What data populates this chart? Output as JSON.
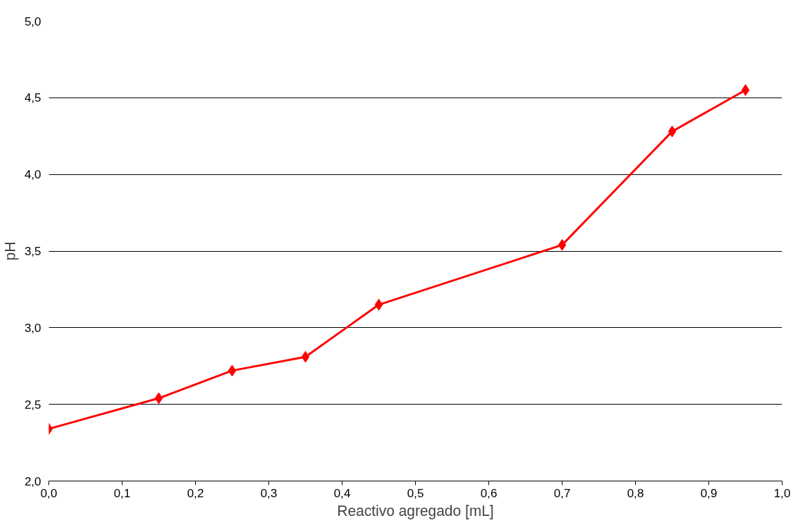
{
  "chart_data": {
    "type": "line",
    "xlabel": "Reactivo agregado [mL]",
    "ylabel": "pH",
    "x": [
      0,
      0.15,
      0.25,
      0.35,
      0.45,
      0.7,
      0.85,
      0.95
    ],
    "series": [
      {
        "color": "#ff0000",
        "values": [
          2.34,
          2.54,
          2.72,
          2.81,
          3.15,
          3.54,
          4.28,
          4.55
        ]
      }
    ],
    "xlim": [
      0,
      1
    ],
    "ylim": [
      2,
      5
    ],
    "xticks": [
      {
        "value": 0,
        "label": "0,0"
      },
      {
        "value": 0.1,
        "label": "0,1"
      },
      {
        "value": 0.2,
        "label": "0,2"
      },
      {
        "value": 0.3,
        "label": "0,3"
      },
      {
        "value": 0.4,
        "label": "0,4"
      },
      {
        "value": 0.5,
        "label": "0,5"
      },
      {
        "value": 0.6,
        "label": "0,6"
      },
      {
        "value": 0.7,
        "label": "0,7"
      },
      {
        "value": 0.8,
        "label": "0,8"
      },
      {
        "value": 0.9,
        "label": "0,9"
      },
      {
        "value": 1,
        "label": "1,0"
      }
    ],
    "yticks": [
      {
        "value": 2,
        "label": "2,0"
      },
      {
        "value": 2.5,
        "label": "2,5"
      },
      {
        "value": 3,
        "label": "3,0"
      },
      {
        "value": 3.5,
        "label": "3,5"
      },
      {
        "value": 4,
        "label": "4,0"
      },
      {
        "value": 4.5,
        "label": "4,5"
      },
      {
        "value": 5,
        "label": "5,0"
      }
    ],
    "grid": "y",
    "marker": "diamond",
    "line_style": "solid"
  }
}
